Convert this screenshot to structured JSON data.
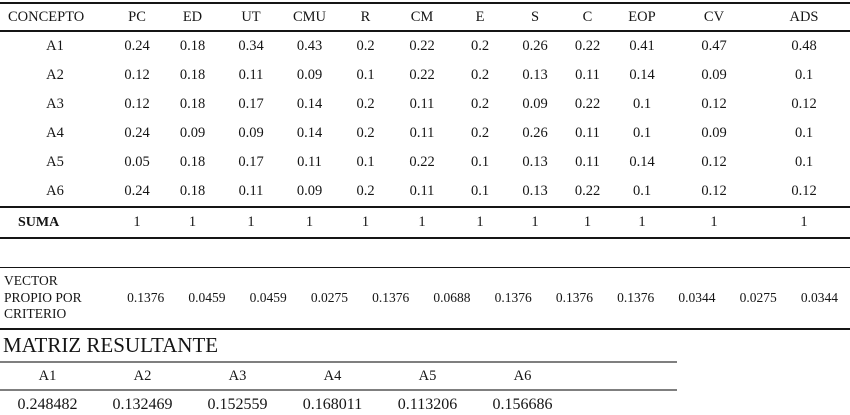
{
  "colors": {
    "background": "#ffffff",
    "text": "#151515",
    "rule_black": "#151515",
    "rule_gray": "#7f7f7f"
  },
  "main_table": {
    "headers": [
      "CONCEPTO",
      "PC",
      "ED",
      "UT",
      "CMU",
      "R",
      "CM",
      "E",
      "S",
      "C",
      "EOP",
      "CV",
      "ADS"
    ],
    "rows": [
      {
        "label": "A1",
        "values": [
          "0.24",
          "0.18",
          "0.34",
          "0.43",
          "0.2",
          "0.22",
          "0.2",
          "0.26",
          "0.22",
          "0.41",
          "0.47",
          "0.48"
        ]
      },
      {
        "label": "A2",
        "values": [
          "0.12",
          "0.18",
          "0.11",
          "0.09",
          "0.1",
          "0.22",
          "0.2",
          "0.13",
          "0.11",
          "0.14",
          "0.09",
          "0.1"
        ]
      },
      {
        "label": "A3",
        "values": [
          "0.12",
          "0.18",
          "0.17",
          "0.14",
          "0.2",
          "0.11",
          "0.2",
          "0.09",
          "0.22",
          "0.1",
          "0.12",
          "0.12"
        ]
      },
      {
        "label": "A4",
        "values": [
          "0.24",
          "0.09",
          "0.09",
          "0.14",
          "0.2",
          "0.11",
          "0.2",
          "0.26",
          "0.11",
          "0.1",
          "0.09",
          "0.1"
        ]
      },
      {
        "label": "A5",
        "values": [
          "0.05",
          "0.18",
          "0.17",
          "0.11",
          "0.1",
          "0.22",
          "0.1",
          "0.13",
          "0.11",
          "0.14",
          "0.12",
          "0.1"
        ]
      },
      {
        "label": "A6",
        "values": [
          "0.24",
          "0.18",
          "0.11",
          "0.09",
          "0.2",
          "0.11",
          "0.1",
          "0.13",
          "0.22",
          "0.1",
          "0.12",
          "0.12"
        ]
      }
    ],
    "suma": {
      "label": "SUMA",
      "values": [
        "1",
        "1",
        "1",
        "1",
        "1",
        "1",
        "1",
        "1",
        "1",
        "1",
        "1",
        "1"
      ]
    }
  },
  "vector": {
    "label_lines": [
      "VECTOR",
      "PROPIO POR",
      "CRITERIO"
    ],
    "values": [
      "0.1376",
      "0.0459",
      "0.0459",
      "0.0275",
      "0.1376",
      "0.0688",
      "0.1376",
      "0.1376",
      "0.1376",
      "0.0344",
      "0.0275",
      "0.0344"
    ]
  },
  "matriz": {
    "title": "MATRIZ RESULTANTE",
    "headers": [
      "A1",
      "A2",
      "A3",
      "A4",
      "A5",
      "A6"
    ],
    "values": [
      "0.248482",
      "0.132469",
      "0.152559",
      "0.168011",
      "0.113206",
      "0.156686"
    ]
  }
}
